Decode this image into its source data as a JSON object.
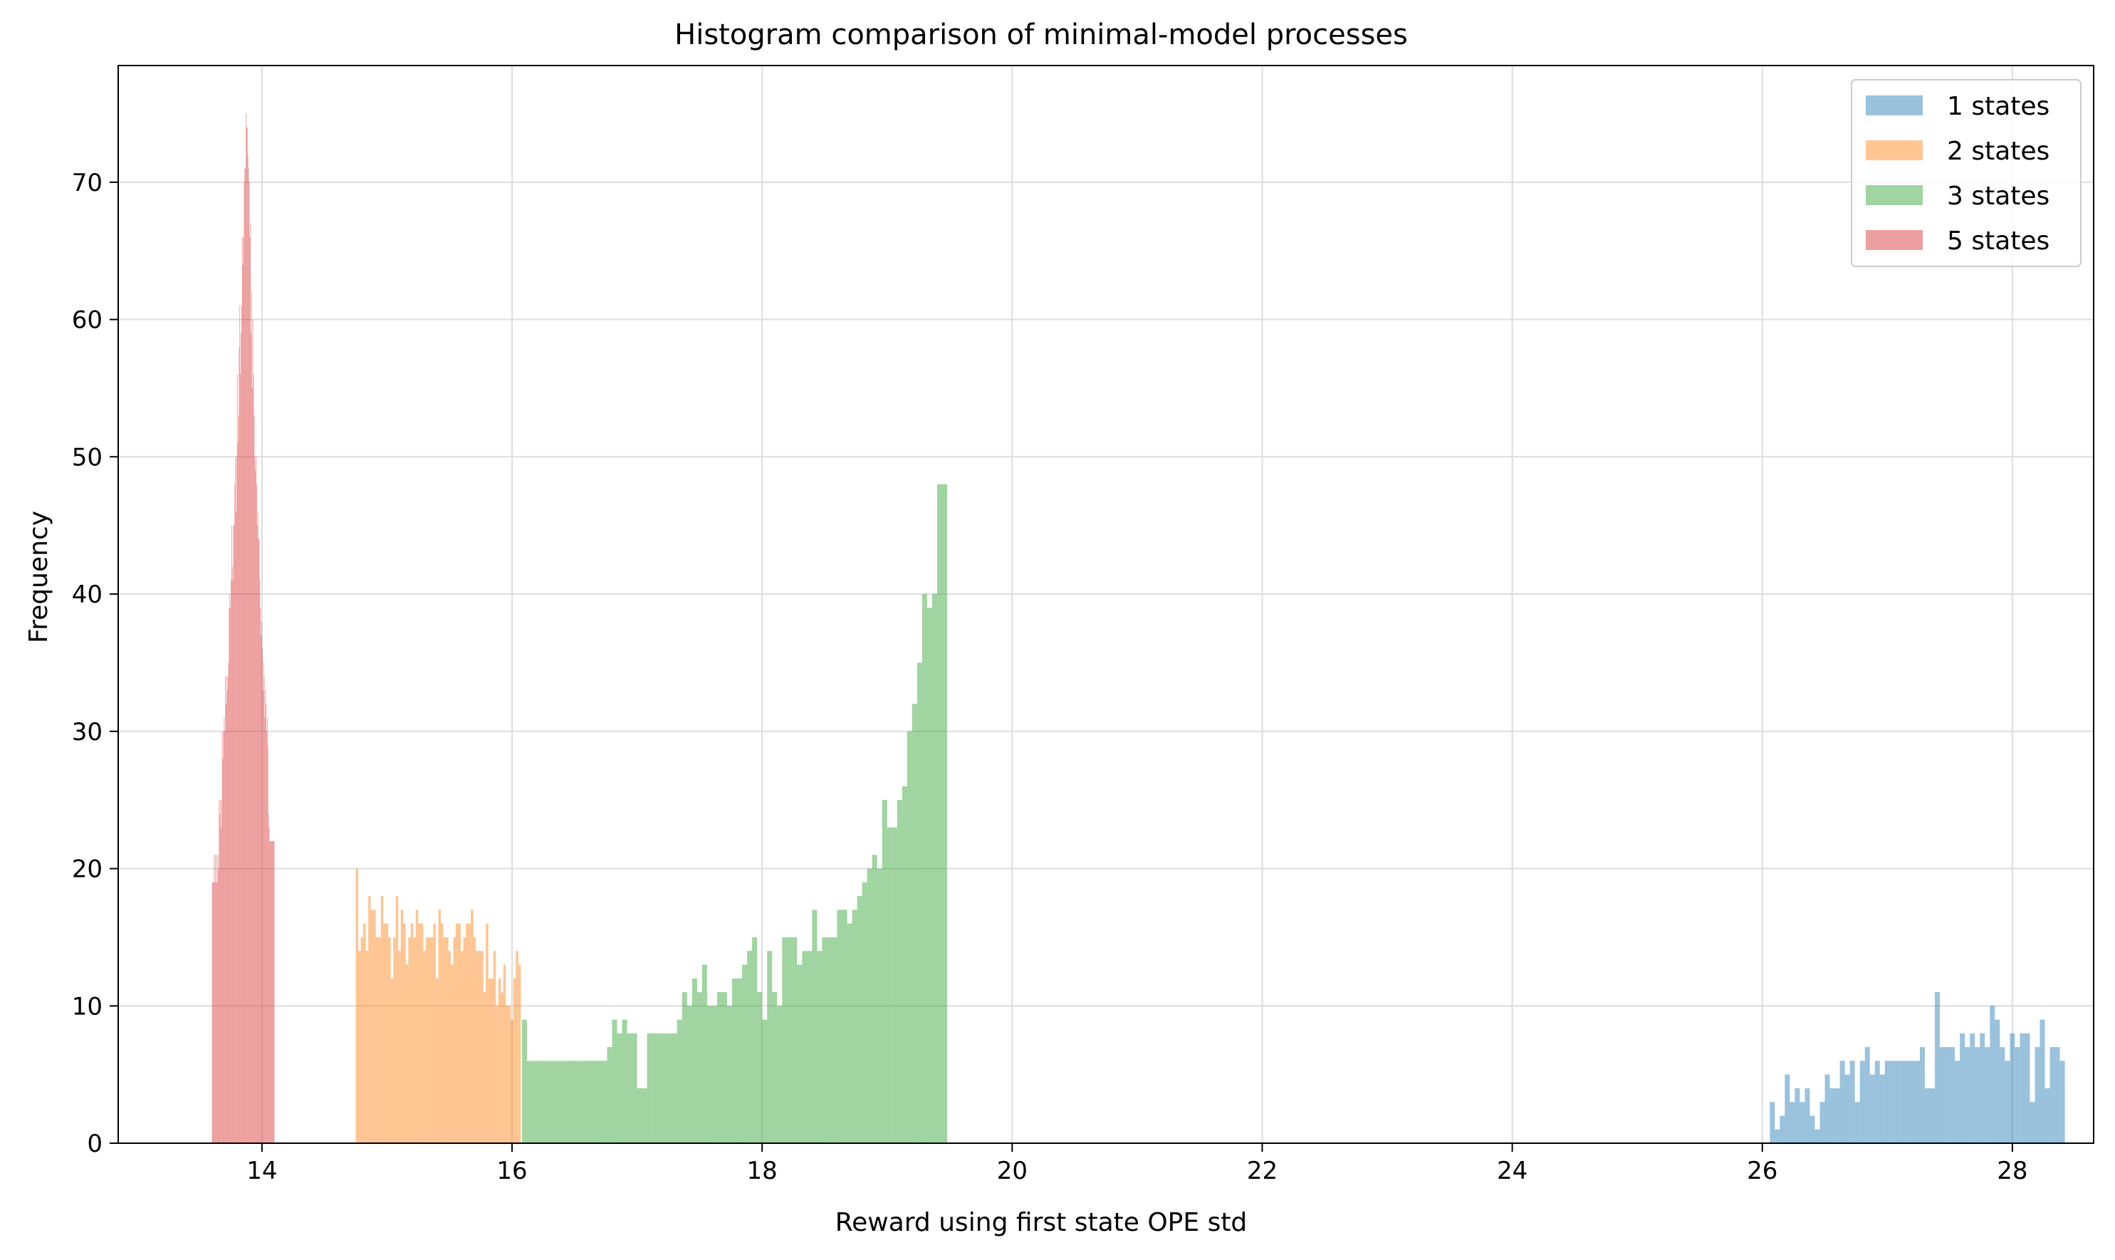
{
  "chart_data": {
    "type": "histogram",
    "title": "Histogram comparison of minimal-model processes",
    "xlabel": "Reward using first state OPE std",
    "ylabel": "Frequency",
    "xlim": [
      12.85,
      28.65
    ],
    "ylim": [
      0,
      78.5
    ],
    "xticks": [
      14,
      16,
      18,
      20,
      22,
      24,
      26,
      28
    ],
    "yticks": [
      0,
      10,
      20,
      30,
      40,
      50,
      60,
      70
    ],
    "grid": true,
    "legend_position": "top-right",
    "series": [
      {
        "name": "1 states",
        "color": "#1f77b4",
        "bin_start": 26.06,
        "bin_width": 0.04,
        "counts": [
          3,
          1,
          2,
          5,
          3,
          4,
          3,
          4,
          2,
          1,
          3,
          5,
          4,
          4,
          6,
          5,
          6,
          3,
          6,
          7,
          5,
          6,
          5,
          6,
          6,
          6,
          6,
          6,
          6,
          6,
          7,
          4,
          4,
          11,
          7,
          7,
          7,
          6,
          8,
          7,
          8,
          7,
          8,
          7,
          10,
          9,
          7,
          6,
          8,
          7,
          8,
          8,
          3,
          7,
          9,
          4,
          7,
          7,
          6
        ]
      },
      {
        "name": "2 states",
        "color": "#ff7f0e",
        "bin_start": 14.75,
        "bin_width": 0.02,
        "counts": [
          20,
          14,
          15,
          16,
          14,
          18,
          17,
          17,
          15,
          15,
          18,
          16,
          16,
          15,
          12,
          15,
          18,
          14,
          17,
          16,
          13,
          15,
          16,
          15,
          17,
          16,
          16,
          14,
          15,
          15,
          15,
          16,
          12,
          17,
          16,
          15,
          15,
          14,
          13,
          15,
          16,
          16,
          14,
          15,
          16,
          16,
          17,
          15,
          14,
          14,
          14,
          11,
          16,
          12,
          12,
          14,
          10,
          12,
          11,
          13,
          10,
          10,
          9,
          12,
          14,
          13
        ]
      },
      {
        "name": "3 states",
        "color": "#2ca02c",
        "bin_start": 16.08,
        "bin_width": 0.04,
        "counts": [
          9,
          6,
          6,
          6,
          6,
          6,
          6,
          6,
          6,
          6,
          6,
          6,
          6,
          6,
          6,
          6,
          6,
          7,
          9,
          8,
          9,
          8,
          8,
          4,
          4,
          8,
          8,
          8,
          8,
          8,
          8,
          9,
          11,
          10,
          12,
          11,
          13,
          10,
          10,
          11,
          11,
          10,
          12,
          12,
          13,
          14,
          15,
          11,
          9,
          14,
          11,
          10,
          15,
          15,
          15,
          13,
          14,
          14,
          17,
          14,
          15,
          15,
          15,
          17,
          17,
          16,
          17,
          18,
          19,
          20,
          21,
          20,
          25,
          23,
          23,
          25,
          26,
          30,
          32,
          35,
          40,
          39,
          40,
          48,
          48
        ]
      },
      {
        "name": "5 states",
        "color": "#d62728",
        "bin_start": 13.6,
        "bin_width": 0.005,
        "counts": [
          19,
          19,
          19,
          21,
          19,
          21,
          19,
          21,
          19,
          21,
          20,
          25,
          24,
          25,
          23,
          25,
          30,
          28,
          30,
          31,
          30,
          34,
          32,
          34,
          33,
          34,
          35,
          39,
          40,
          39,
          41,
          45,
          42,
          41,
          45,
          45,
          48,
          50,
          46,
          50,
          56,
          51,
          53,
          58,
          61,
          56,
          59,
          61,
          66,
          64,
          66,
          70,
          71,
          71,
          75,
          74,
          74,
          72,
          71,
          70,
          66,
          67,
          59,
          62,
          55,
          60,
          56,
          53,
          50,
          49,
          50,
          48,
          45,
          46,
          44,
          44,
          41,
          39,
          37,
          38,
          36,
          33,
          35,
          34,
          31,
          33,
          32,
          30,
          31,
          29,
          24,
          23,
          22,
          22,
          22,
          22,
          22,
          22,
          22,
          22
        ]
      }
    ]
  }
}
